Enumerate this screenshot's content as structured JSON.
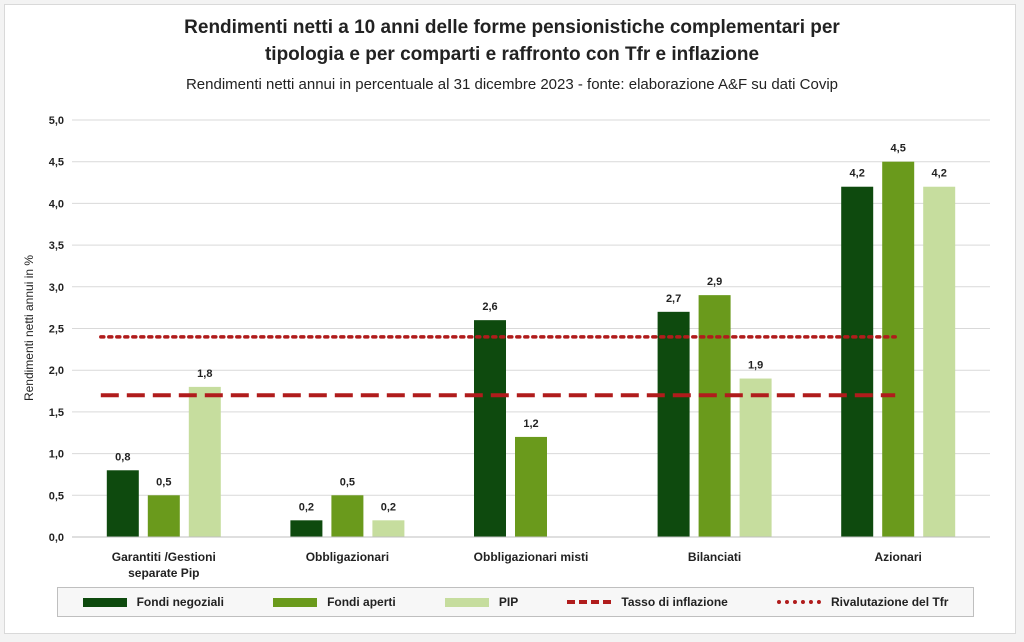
{
  "title_line1": "Rendimenti netti a 10 anni delle forme pensionistiche complementari per",
  "title_line2": "tipologia e per comparti e raffronto con Tfr e inflazione",
  "subtitle": "Rendimenti netti annui in percentuale al 31 dicembre 2023 - fonte: elaborazione A&F su dati Covip",
  "chart_data": {
    "type": "bar",
    "ylabel": "Rendimenti netti annui in %",
    "ylim": [
      0,
      5
    ],
    "yticks": [
      "0,0",
      "0,5",
      "1,0",
      "1,5",
      "2,0",
      "2,5",
      "3,0",
      "3,5",
      "4,0",
      "4,5",
      "5,0"
    ],
    "grid": true,
    "legend_position": "bottom",
    "categories": [
      [
        "Garantiti /Gestioni",
        "separate Pip"
      ],
      [
        "Obbligazionari"
      ],
      [
        "Obbligazionari misti"
      ],
      [
        "Bilanciati"
      ],
      [
        "Azionari"
      ]
    ],
    "series": [
      {
        "name": "Fondi negoziali",
        "color": "#0e4a0e",
        "values": [
          0.8,
          0.2,
          2.6,
          2.7,
          4.2
        ],
        "labels": [
          "0,8",
          "0,2",
          "2,6",
          "2,7",
          "4,2"
        ]
      },
      {
        "name": "Fondi aperti",
        "color": "#6a9a1c",
        "values": [
          0.5,
          0.5,
          1.2,
          2.9,
          4.5
        ],
        "labels": [
          "0,5",
          "0,5",
          "1,2",
          "2,9",
          "4,5"
        ]
      },
      {
        "name": "PIP",
        "color": "#c6dd9e",
        "values": [
          1.8,
          0.2,
          null,
          1.9,
          4.2
        ],
        "labels": [
          "1,8",
          "0,2",
          "",
          "1,9",
          "4,2"
        ]
      }
    ],
    "lines": [
      {
        "name": "Tasso di inflazione",
        "value": 1.7,
        "style": "dashed",
        "color": "#b01c1c"
      },
      {
        "name": "Rivalutazione del Tfr",
        "value": 2.4,
        "style": "dotted",
        "color": "#b01c1c"
      }
    ]
  }
}
